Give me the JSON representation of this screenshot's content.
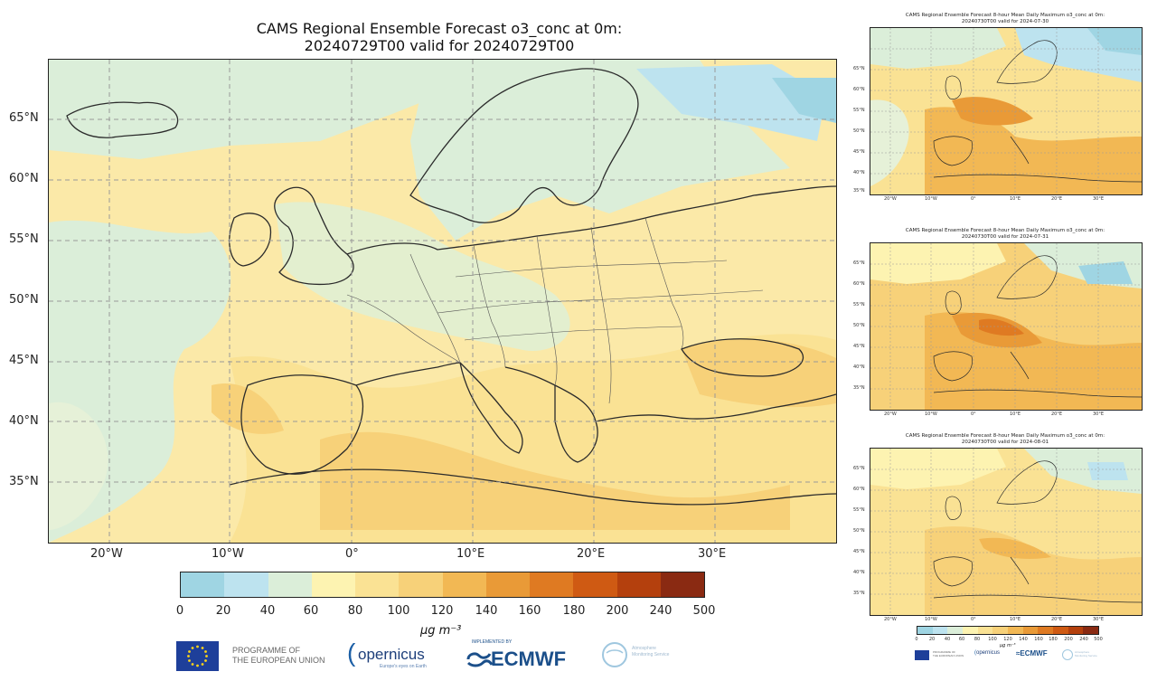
{
  "main_map": {
    "title_line1": "CAMS Regional Ensemble Forecast o3_conc at 0m:",
    "title_line2": "20240729T00 valid for 20240729T00",
    "lat_labels": [
      "65°N",
      "60°N",
      "55°N",
      "50°N",
      "45°N",
      "40°N",
      "35°N"
    ],
    "lon_labels": [
      "20°W",
      "10°W",
      "0°",
      "10°E",
      "20°E",
      "30°E"
    ]
  },
  "colorbar": {
    "ticks": [
      "0",
      "20",
      "40",
      "60",
      "80",
      "100",
      "120",
      "140",
      "160",
      "180",
      "200",
      "240",
      "500"
    ],
    "colors": [
      "#9fd5e3",
      "#bde3ef",
      "#dbeed9",
      "#fdf3b1",
      "#fae294",
      "#f7d179",
      "#f2b854",
      "#e99a37",
      "#df7a22",
      "#cf5a13",
      "#b4400d",
      "#8a2a12"
    ],
    "unit_label": "μg m⁻³"
  },
  "small_maps": [
    {
      "title_line1": "CAMS Regional Ensemble Forecast 8-hour Mean Daily Maximum o3_conc at 0m:",
      "title_line2": "20240730T00 valid for 2024-07-30"
    },
    {
      "title_line1": "CAMS Regional Ensemble Forecast 8-hour Mean Daily Maximum o3_conc at 0m:",
      "title_line2": "20240730T00 valid for 2024-07-31"
    },
    {
      "title_line1": "CAMS Regional Ensemble Forecast 8-hour Mean Daily Maximum o3_conc at 0m:",
      "title_line2": "20240730T00 valid for 2024-08-01"
    }
  ],
  "small_axes": {
    "lat_labels": [
      "65°N",
      "60°N",
      "55°N",
      "50°N",
      "45°N",
      "40°N",
      "35°N"
    ],
    "lon_labels": [
      "20°W",
      "10°W",
      "0°",
      "10°E",
      "20°E",
      "30°E"
    ]
  },
  "logos": {
    "eu_text_line1": "PROGRAMME OF",
    "eu_text_line2": "THE EUROPEAN UNION",
    "copernicus": "opernicus",
    "copernicus_sub": "Europe's eyes on Earth",
    "ecmwf_small": "IMPLEMENTED BY",
    "ecmwf": "ECMWF",
    "atmosphere_line1": "Atmosphere",
    "atmosphere_line2": "Monitoring Service"
  }
}
